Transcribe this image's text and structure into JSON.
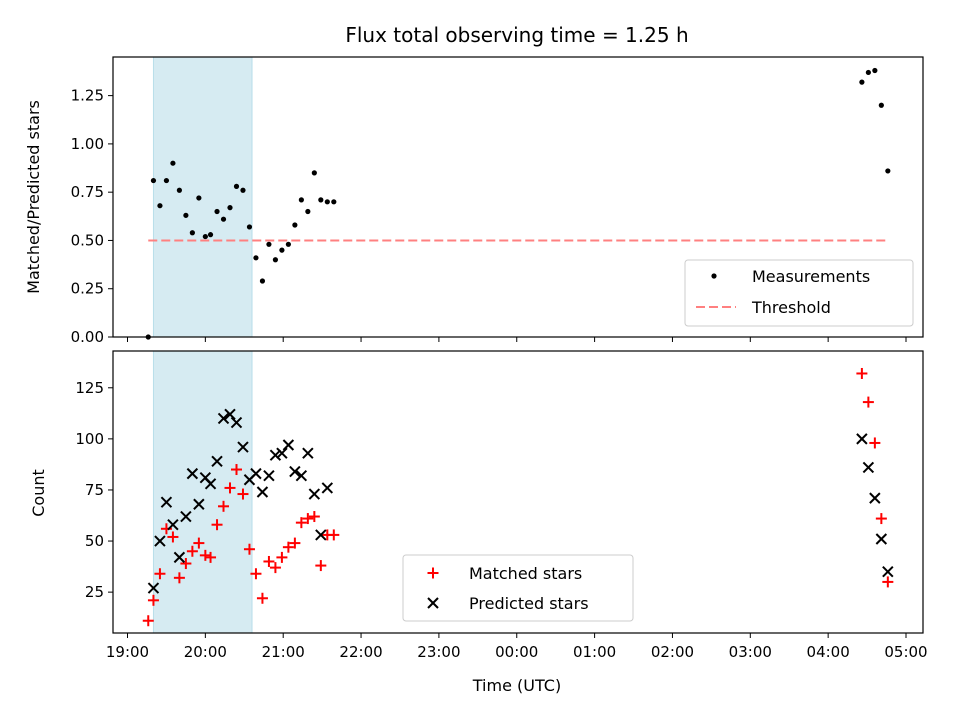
{
  "chart_data": [
    {
      "type": "scatter",
      "title": "Flux total observing time = 1.25 h",
      "xlabel": "",
      "ylabel": "Matched/Predicted stars",
      "ylim": [
        0,
        1.45
      ],
      "yticks": [
        0.0,
        0.25,
        0.5,
        0.75,
        1.0,
        1.25
      ],
      "ytick_labels": [
        "0.00",
        "0.25",
        "0.50",
        "0.75",
        "1.00",
        "1.25"
      ],
      "shaded_span": {
        "x_start": "19:20",
        "x_end": "20:36",
        "color": "#add8e6"
      },
      "series": [
        {
          "name": "Measurements",
          "marker": "dot",
          "color": "#000000",
          "x": [
            "19:16",
            "19:20",
            "19:25",
            "19:30",
            "19:35",
            "19:40",
            "19:45",
            "19:50",
            "19:55",
            "20:00",
            "20:04",
            "20:09",
            "20:14",
            "20:19",
            "20:24",
            "20:29",
            "20:34",
            "20:39",
            "20:44",
            "20:49",
            "20:54",
            "20:59",
            "21:04",
            "21:09",
            "21:14",
            "21:19",
            "21:24",
            "21:29",
            "21:34",
            "21:39",
            "04:26",
            "04:31",
            "04:36",
            "04:41",
            "04:46"
          ],
          "y": [
            0.0,
            0.81,
            0.68,
            0.81,
            0.9,
            0.76,
            0.63,
            0.54,
            0.72,
            0.52,
            0.53,
            0.65,
            0.61,
            0.67,
            0.78,
            0.76,
            0.57,
            0.41,
            0.29,
            0.48,
            0.4,
            0.45,
            0.48,
            0.58,
            0.71,
            0.65,
            0.85,
            0.71,
            0.7,
            0.7,
            1.32,
            1.37,
            1.38,
            1.2,
            0.86
          ]
        },
        {
          "name": "Threshold",
          "marker": "dashed-line",
          "color": "#ff8080",
          "x": [
            "19:16",
            "04:46"
          ],
          "y": [
            0.5,
            0.5
          ]
        }
      ],
      "legend": {
        "position": "lower-right",
        "entries": [
          "Measurements",
          "Threshold"
        ]
      }
    },
    {
      "type": "scatter",
      "title": "",
      "xlabel": "Time (UTC)",
      "ylabel": "Count",
      "ylim": [
        5,
        143
      ],
      "yticks": [
        25,
        50,
        75,
        100,
        125
      ],
      "ytick_labels": [
        "25",
        "50",
        "75",
        "100",
        "125"
      ],
      "xticks": [
        "19:00",
        "20:00",
        "21:00",
        "22:00",
        "23:00",
        "00:00",
        "01:00",
        "02:00",
        "03:00",
        "04:00",
        "05:00"
      ],
      "shaded_span": {
        "x_start": "19:20",
        "x_end": "20:36",
        "color": "#add8e6"
      },
      "series": [
        {
          "name": "Matched stars",
          "marker": "plus",
          "color": "#ff0000",
          "x": [
            "19:16",
            "19:20",
            "19:25",
            "19:30",
            "19:35",
            "19:40",
            "19:45",
            "19:50",
            "19:55",
            "20:00",
            "20:04",
            "20:09",
            "20:14",
            "20:19",
            "20:24",
            "20:29",
            "20:34",
            "20:39",
            "20:44",
            "20:49",
            "20:54",
            "20:59",
            "21:04",
            "21:09",
            "21:14",
            "21:19",
            "21:24",
            "21:29",
            "21:34",
            "21:39",
            "04:26",
            "04:31",
            "04:36",
            "04:41",
            "04:46"
          ],
          "y": [
            11,
            21,
            34,
            56,
            52,
            32,
            39,
            45,
            49,
            43,
            42,
            58,
            67,
            76,
            85,
            73,
            46,
            34,
            22,
            40,
            37,
            42,
            47,
            49,
            59,
            61,
            62,
            38,
            53,
            53,
            132,
            118,
            98,
            61,
            30
          ]
        },
        {
          "name": "Predicted stars",
          "marker": "x",
          "color": "#000000",
          "x": [
            "19:20",
            "19:25",
            "19:30",
            "19:35",
            "19:40",
            "19:45",
            "19:50",
            "19:55",
            "20:00",
            "20:04",
            "20:09",
            "20:14",
            "20:19",
            "20:24",
            "20:29",
            "20:34",
            "20:39",
            "20:44",
            "20:49",
            "20:54",
            "20:59",
            "21:04",
            "21:09",
            "21:14",
            "21:19",
            "21:24",
            "21:29",
            "21:34",
            "04:26",
            "04:31",
            "04:36",
            "04:41",
            "04:46"
          ],
          "y": [
            27,
            50,
            69,
            58,
            42,
            62,
            83,
            68,
            81,
            78,
            89,
            110,
            112,
            108,
            96,
            80,
            83,
            74,
            82,
            92,
            93,
            97,
            84,
            82,
            93,
            73,
            53,
            76,
            100,
            86,
            71,
            51,
            35
          ]
        }
      ],
      "legend": {
        "position": "lower-center",
        "entries": [
          "Matched stars",
          "Predicted stars"
        ]
      }
    }
  ]
}
